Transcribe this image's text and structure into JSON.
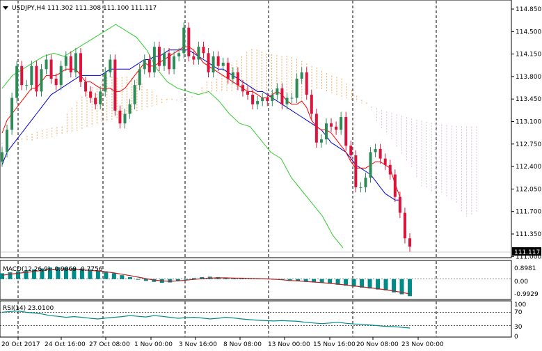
{
  "main": {
    "header": "USDJPY,H4  111.302 111.308 111.100 111.117",
    "last_price": "111.117",
    "yticks": [
      "114.850",
      "114.500",
      "114.150",
      "113.800",
      "113.450",
      "113.100",
      "112.750",
      "112.400",
      "112.050",
      "111.700",
      "111.350",
      "111.000"
    ],
    "xticks": [
      "20 Oct 2017",
      "24 Oct 16:00",
      "27 Oct 08:00",
      "1 Nov 00:00",
      "3 Nov 16:00",
      "8 Nov 08:00",
      "13 Nov 00:00",
      "15 Nov 16:00",
      "20 Nov 08:00",
      "23 Nov 00:00"
    ]
  },
  "macd": {
    "header": "MACD(12,26,9) -0.9069 -0.7756",
    "yticks": [
      "0.8981",
      "0.00",
      "-0.9929"
    ]
  },
  "rsi": {
    "header": "RSI(14) 23.0100",
    "yticks": [
      "100",
      "70",
      "30",
      "0"
    ]
  },
  "colors": {
    "bull": "#2e8b57",
    "bear": "#dc143c",
    "tenkan": "#ff0000",
    "kijun": "#0000cd",
    "chikou": "#32cd32",
    "senkou_a": "#f4a460",
    "senkou_b": "#d8bfd8",
    "histogram": "#008b8b",
    "signal": "#b22222",
    "rsi_line": "#008b8b"
  },
  "chart_data": {
    "type": "candlestick",
    "symbol": "USDJPY",
    "timeframe": "H4",
    "ylim": [
      110.98,
      114.95
    ],
    "close": [
      112.6,
      112.95,
      113.45,
      113.95,
      113.65,
      113.65,
      113.95,
      113.55,
      113.9,
      114.05,
      113.75,
      113.65,
      113.95,
      114.1,
      113.85,
      114.15,
      113.7,
      113.55,
      113.45,
      113.35,
      113.55,
      113.85,
      114.05,
      113.25,
      113.05,
      113.2,
      113.35,
      113.65,
      113.9,
      114.05,
      113.85,
      114.25,
      113.95,
      114.15,
      113.9,
      114.1,
      114.15,
      114.55,
      114.1,
      114.05,
      114.25,
      114.15,
      113.85,
      114.1,
      113.95,
      114.0,
      113.75,
      113.85,
      113.65,
      113.55,
      113.5,
      113.35,
      113.4,
      113.45,
      113.4,
      113.5,
      113.6,
      113.35,
      113.45,
      113.45,
      113.75,
      113.85,
      113.5,
      113.2,
      112.75,
      112.8,
      113.05,
      113.0,
      112.95,
      113.15,
      112.7,
      112.55,
      112.05,
      112.05,
      112.2,
      112.6,
      112.65,
      112.5,
      112.4,
      112.25,
      111.9,
      111.65,
      111.25,
      111.12
    ],
    "tenkan": [
      112.9,
      113.1,
      113.2,
      113.3,
      113.4,
      113.5,
      113.6,
      113.6,
      113.7,
      113.8,
      113.8,
      113.8,
      113.85,
      113.9,
      113.9,
      113.9,
      113.8,
      113.7,
      113.7,
      113.65,
      113.6,
      113.6,
      113.6,
      113.55,
      113.55,
      113.6,
      113.7,
      113.8,
      113.9,
      114.0,
      113.95,
      113.95,
      114.0,
      114.05,
      114.1,
      114.15,
      114.2,
      114.25,
      114.25,
      114.2,
      114.1,
      114.0,
      113.95,
      113.9,
      113.85,
      113.8,
      113.75,
      113.7,
      113.65,
      113.6,
      113.55,
      113.55,
      113.5,
      113.45,
      113.45,
      113.5,
      113.55,
      113.5,
      113.4,
      113.35,
      113.35,
      113.4,
      113.3,
      113.1,
      113.0,
      112.95,
      112.95,
      112.9,
      112.8,
      112.7,
      112.6,
      112.45,
      112.35,
      112.35,
      112.35,
      112.4,
      112.45,
      112.45,
      112.4,
      112.35,
      112.1,
      111.9
    ],
    "kijun": [
      112.4,
      112.6,
      112.7,
      112.8,
      112.9,
      113.0,
      113.1,
      113.2,
      113.3,
      113.4,
      113.5,
      113.55,
      113.6,
      113.65,
      113.7,
      113.75,
      113.8,
      113.8,
      113.8,
      113.8,
      113.8,
      113.85,
      113.9,
      113.9,
      113.9,
      113.9,
      113.9,
      113.95,
      114.0,
      114.05,
      114.05,
      114.1,
      114.1,
      114.15,
      114.2,
      114.2,
      114.2,
      114.2,
      114.2,
      114.15,
      114.1,
      114.05,
      114.0,
      113.95,
      113.9,
      113.9,
      113.85,
      113.8,
      113.75,
      113.7,
      113.65,
      113.6,
      113.55,
      113.55,
      113.5,
      113.45,
      113.4,
      113.35,
      113.3,
      113.25,
      113.2,
      113.15,
      113.1,
      113.05,
      113.0,
      112.95,
      112.85,
      112.75,
      112.7,
      112.65,
      112.6,
      112.5,
      112.4,
      112.35,
      112.3,
      112.25,
      112.15,
      112.05,
      111.95,
      111.9,
      111.85,
      111.85
    ],
    "chikou": [
      113.6,
      113.8,
      113.9,
      114.0,
      114.1,
      114.15,
      114.1,
      114.2,
      114.3,
      114.4,
      114.5,
      114.6,
      114.5,
      114.4,
      114.2,
      113.9,
      113.7,
      113.6,
      113.55,
      113.5,
      113.55,
      113.4,
      113.2,
      113.05,
      113.0,
      112.8,
      112.6,
      112.5,
      112.2,
      112.0,
      111.8,
      111.6,
      111.3,
      111.1
    ],
    "macd": [
      0.3,
      0.35,
      0.4,
      0.45,
      0.5,
      0.55,
      0.6,
      0.62,
      0.6,
      0.58,
      0.55,
      0.5,
      0.45,
      0.4,
      0.3,
      0.2,
      0.1,
      0.0,
      -0.1,
      -0.15,
      -0.2,
      -0.18,
      -0.1,
      0.0,
      0.05,
      0.1,
      0.12,
      0.1,
      0.08,
      0.06,
      0.05,
      0.04,
      0.03,
      0.02,
      0.0,
      -0.05,
      -0.1,
      -0.12,
      -0.15,
      -0.18,
      -0.2,
      -0.25,
      -0.3,
      -0.35,
      -0.4,
      -0.45,
      -0.5,
      -0.55,
      -0.6,
      -0.7,
      -0.8,
      -0.9
    ],
    "signal": [
      0.2,
      0.25,
      0.3,
      0.35,
      0.4,
      0.45,
      0.5,
      0.52,
      0.52,
      0.5,
      0.48,
      0.45,
      0.42,
      0.38,
      0.32,
      0.25,
      0.18,
      0.1,
      0.02,
      -0.05,
      -0.1,
      -0.12,
      -0.1,
      -0.06,
      -0.02,
      0.02,
      0.05,
      0.06,
      0.06,
      0.05,
      0.04,
      0.03,
      0.02,
      0.01,
      -0.01,
      -0.04,
      -0.08,
      -0.1,
      -0.13,
      -0.16,
      -0.19,
      -0.23,
      -0.27,
      -0.31,
      -0.36,
      -0.41,
      -0.46,
      -0.51,
      -0.56,
      -0.63,
      -0.7,
      -0.78
    ],
    "rsi": [
      70,
      72,
      74,
      70,
      68,
      65,
      60,
      58,
      55,
      57,
      55,
      52,
      50,
      53,
      55,
      57,
      60,
      58,
      56,
      60,
      58,
      55,
      52,
      54,
      55,
      53,
      50,
      52,
      55,
      53,
      50,
      48,
      46,
      45,
      44,
      45,
      44,
      43,
      40,
      38,
      36,
      38,
      40,
      37,
      35,
      34,
      32,
      30,
      28,
      27,
      25,
      23
    ]
  }
}
